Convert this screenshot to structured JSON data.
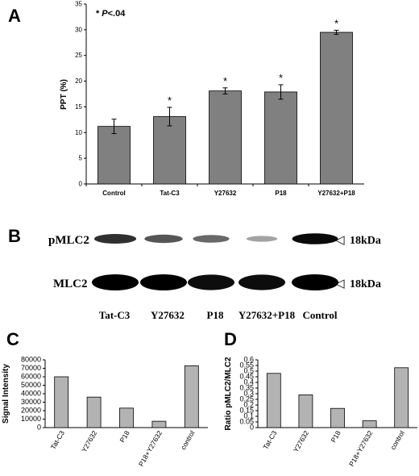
{
  "panels": {
    "a": "A",
    "b": "B",
    "c": "C",
    "d": "D"
  },
  "chart_data": [
    {
      "type": "bar",
      "ylabel": "PPT (%)",
      "annotation": "* P<.04",
      "annotation_star": "*",
      "annotation_p": "P",
      "annotation_rest": "<.04",
      "categories": [
        "Control",
        "Tat-C3",
        "Y27632",
        "P18",
        "Y27632+P18"
      ],
      "values": [
        11.2,
        13.1,
        18.1,
        17.9,
        29.5
      ],
      "errors": [
        1.4,
        1.8,
        0.6,
        1.4,
        0.4
      ],
      "significance": [
        "",
        "*",
        "*",
        "*",
        "*"
      ],
      "ylim": [
        0,
        35
      ],
      "yticks": [
        "0",
        "5",
        "10",
        "15",
        "20",
        "25",
        "30",
        "35"
      ],
      "bar_color": "#808080",
      "grid": false
    },
    {
      "type": "bar",
      "ylabel": "Signal Intensity",
      "categories": [
        "Tat-C3",
        "Y27632",
        "P18",
        "P18+Y27632",
        "control"
      ],
      "values": [
        60000,
        36000,
        23000,
        7500,
        73000
      ],
      "ylim": [
        0,
        80000
      ],
      "yticks": [
        "0",
        "10000",
        "20000",
        "30000",
        "40000",
        "50000",
        "60000",
        "70000",
        "80000"
      ],
      "bar_color": "#b3b3b3",
      "grid": false
    },
    {
      "type": "bar",
      "ylabel": "Ratio pMLC2/MLC2",
      "categories": [
        "Tat-C3",
        "Y27632",
        "P18",
        "P18+Y27632",
        "control"
      ],
      "values": [
        0.48,
        0.29,
        0.17,
        0.06,
        0.53
      ],
      "ylim": [
        0,
        0.6
      ],
      "yticks": [
        "0",
        "0.05",
        "0.1",
        "0.15",
        "0.2",
        "0.25",
        "0.3",
        "0.35",
        "0.4",
        "0.45",
        "0.5",
        "0.55",
        "0.6"
      ],
      "bar_color": "#b3b3b3",
      "grid": false
    }
  ],
  "blot": {
    "row1_label": "pMLC2",
    "row2_label": "MLC2",
    "marker_symbol": "◁",
    "marker1": "18kDa",
    "marker2": "18kDa",
    "lanes": [
      "Tat-C3",
      "Y27632",
      "P18",
      "Y27632+P18",
      "Control"
    ],
    "pmlc2_intensity": [
      0.75,
      0.55,
      0.45,
      0.15,
      0.95
    ],
    "mlc2_intensity": [
      1.0,
      1.0,
      0.95,
      0.95,
      1.0
    ]
  }
}
